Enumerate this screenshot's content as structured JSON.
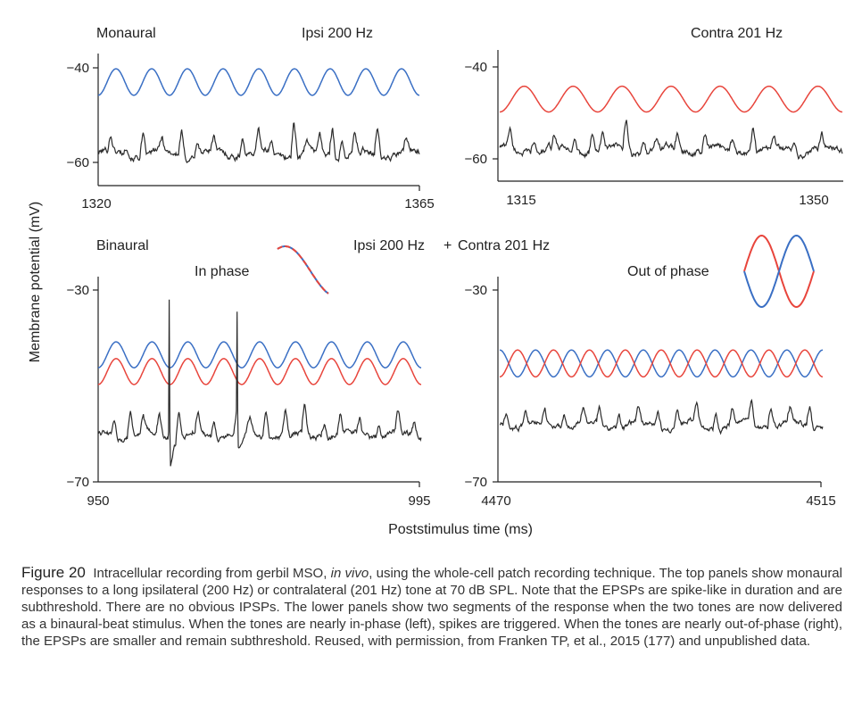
{
  "colors": {
    "ipsi": "#3a6fc4",
    "contra": "#e8453c",
    "response": "#2b2b2b",
    "axis": "#222222"
  },
  "labels": {
    "monaural": "Monaural",
    "binaural": "Binaural",
    "ipsi_top": "Ipsi 200 Hz",
    "contra_top": "Contra 201 Hz",
    "ipsi_bin": "Ipsi 200 Hz",
    "plus": "+",
    "contra_bin": "Contra 201 Hz",
    "in_phase": "In phase",
    "out_of_phase": "Out of phase",
    "ylabel": "Membrane potential (mV)",
    "xlabel": "Poststimulus time (ms)"
  },
  "caption": {
    "figure_number": "Figure 20",
    "text_before_italic": "Intracellular recording from gerbil MSO, ",
    "italic": "in vivo",
    "text_after_italic": ", using the whole-cell patch recording technique. The top panels show monaural responses to a long ipsilateral (200 Hz) or contralateral (201 Hz) tone at 70 dB SPL. Note that the EPSPs are spike-like in duration and are subthreshold. There are no obvious IPSPs. The lower panels show two segments of the response when the two tones are now delivered as a binaural-beat stimulus. When the tones are nearly in-phase (left), spikes are triggered. When the tones are nearly out-of-phase (right), the EPSPs are smaller and remain subthreshold. Reused, with permission, from Franken TP, et al., 2015 (177) and unpublished data."
  },
  "chart_data": [
    {
      "type": "line",
      "panel": "top-left",
      "xlim": [
        1320,
        1365
      ],
      "x_ticks": [
        "1320",
        "1365"
      ],
      "ylim": [
        -62,
        -38
      ],
      "y_ticks": [
        {
          "value": -40,
          "label": "−40"
        },
        {
          "value": -60,
          "label": "−60"
        }
      ],
      "series": [
        {
          "name": "Ipsi 200 Hz",
          "kind": "sine",
          "color": "ipsi",
          "mean": -43,
          "amplitude": 2.8,
          "cycles": 9
        },
        {
          "kind": "response",
          "color": "response",
          "baseline": -58,
          "noise": 1.0,
          "events": [
            [
              0.04,
              3
            ],
            [
              0.09,
              2
            ],
            [
              0.14,
              4
            ],
            [
              0.2,
              2.5
            ],
            [
              0.26,
              5
            ],
            [
              0.31,
              2
            ],
            [
              0.36,
              3
            ],
            [
              0.45,
              4
            ],
            [
              0.5,
              5
            ],
            [
              0.54,
              3
            ],
            [
              0.61,
              7
            ],
            [
              0.65,
              3
            ],
            [
              0.69,
              4
            ],
            [
              0.73,
              6
            ],
            [
              0.76,
              3
            ],
            [
              0.8,
              4
            ],
            [
              0.87,
              6
            ],
            [
              0.96,
              3
            ]
          ]
        }
      ]
    },
    {
      "type": "line",
      "panel": "top-right",
      "xlim": [
        1315,
        1350
      ],
      "x_ticks": [
        "1315",
        "1350"
      ],
      "ylim": [
        -62,
        -38
      ],
      "y_ticks": [
        {
          "value": -40,
          "label": "−40"
        },
        {
          "value": -60,
          "label": "−60"
        }
      ],
      "series": [
        {
          "name": "Contra 201 Hz",
          "kind": "sine",
          "color": "contra",
          "mean": -47,
          "amplitude": 2.8,
          "cycles": 7
        },
        {
          "kind": "response",
          "color": "response",
          "baseline": -58,
          "noise": 1.0,
          "events": [
            [
              0.03,
              4
            ],
            [
              0.1,
              2
            ],
            [
              0.16,
              3
            ],
            [
              0.22,
              2
            ],
            [
              0.27,
              4
            ],
            [
              0.3,
              3
            ],
            [
              0.37,
              6
            ],
            [
              0.42,
              3
            ],
            [
              0.46,
              2
            ],
            [
              0.52,
              3
            ],
            [
              0.6,
              3
            ],
            [
              0.68,
              2
            ],
            [
              0.74,
              5
            ],
            [
              0.8,
              2
            ],
            [
              0.86,
              3
            ],
            [
              0.94,
              3
            ]
          ]
        }
      ]
    },
    {
      "type": "line",
      "panel": "bottom-left",
      "xlim": [
        950,
        995
      ],
      "x_ticks": [
        "950",
        "995"
      ],
      "ylim": [
        -70,
        -30
      ],
      "y_ticks": [
        {
          "value": -30,
          "label": "−30"
        },
        {
          "value": -70,
          "label": "−70"
        }
      ],
      "series": [
        {
          "name": "Ipsi 200 Hz",
          "kind": "sine",
          "color": "ipsi",
          "mean": -43.5,
          "amplitude": 2.7,
          "cycles": 9
        },
        {
          "name": "Contra 201 Hz",
          "kind": "sine",
          "color": "contra",
          "mean": -47,
          "amplitude": 2.7,
          "cycles": 9,
          "phase_shift": 0.0
        },
        {
          "kind": "response",
          "color": "response",
          "baseline": -60,
          "noise": 0.9,
          "events": [
            [
              0.05,
              3
            ],
            [
              0.1,
              5
            ],
            [
              0.14,
              3
            ],
            [
              0.19,
              4
            ],
            [
              0.25,
              6
            ],
            [
              0.31,
              4
            ],
            [
              0.36,
              3
            ],
            [
              0.43,
              3
            ],
            [
              0.47,
              3
            ],
            [
              0.52,
              5
            ],
            [
              0.58,
              5
            ],
            [
              0.64,
              6
            ],
            [
              0.7,
              3
            ],
            [
              0.75,
              4
            ],
            [
              0.81,
              3
            ],
            [
              0.87,
              3
            ],
            [
              0.93,
              4
            ],
            [
              0.98,
              3
            ]
          ],
          "spikes": [
            [
              0.22,
              -32
            ],
            [
              0.43,
              -34.5
            ]
          ]
        }
      ]
    },
    {
      "type": "line",
      "panel": "bottom-right",
      "xlim": [
        4470,
        4515
      ],
      "x_ticks": [
        "4470",
        "4515"
      ],
      "ylim": [
        -70,
        -30
      ],
      "y_ticks": [
        {
          "value": -30,
          "label": "−30"
        },
        {
          "value": -70,
          "label": "−70"
        }
      ],
      "series": [
        {
          "name": "Ipsi 200 Hz",
          "kind": "sine",
          "color": "ipsi",
          "mean": -45.3,
          "amplitude": 2.8,
          "cycles": 9,
          "phase_shift": 0.5
        },
        {
          "name": "Contra 201 Hz",
          "kind": "sine",
          "color": "contra",
          "mean": -45.3,
          "amplitude": 2.8,
          "cycles": 9,
          "phase_shift": 0.0
        },
        {
          "kind": "response",
          "color": "response",
          "baseline": -58,
          "noise": 0.8,
          "events": [
            [
              0.02,
              2
            ],
            [
              0.08,
              3
            ],
            [
              0.14,
              3
            ],
            [
              0.2,
              3
            ],
            [
              0.26,
              3
            ],
            [
              0.31,
              3
            ],
            [
              0.37,
              3
            ],
            [
              0.43,
              3
            ],
            [
              0.49,
              3
            ],
            [
              0.55,
              3
            ],
            [
              0.61,
              4
            ],
            [
              0.67,
              4
            ],
            [
              0.72,
              3
            ],
            [
              0.78,
              4
            ],
            [
              0.84,
              4
            ],
            [
              0.9,
              3
            ],
            [
              0.96,
              4
            ]
          ]
        }
      ]
    }
  ]
}
